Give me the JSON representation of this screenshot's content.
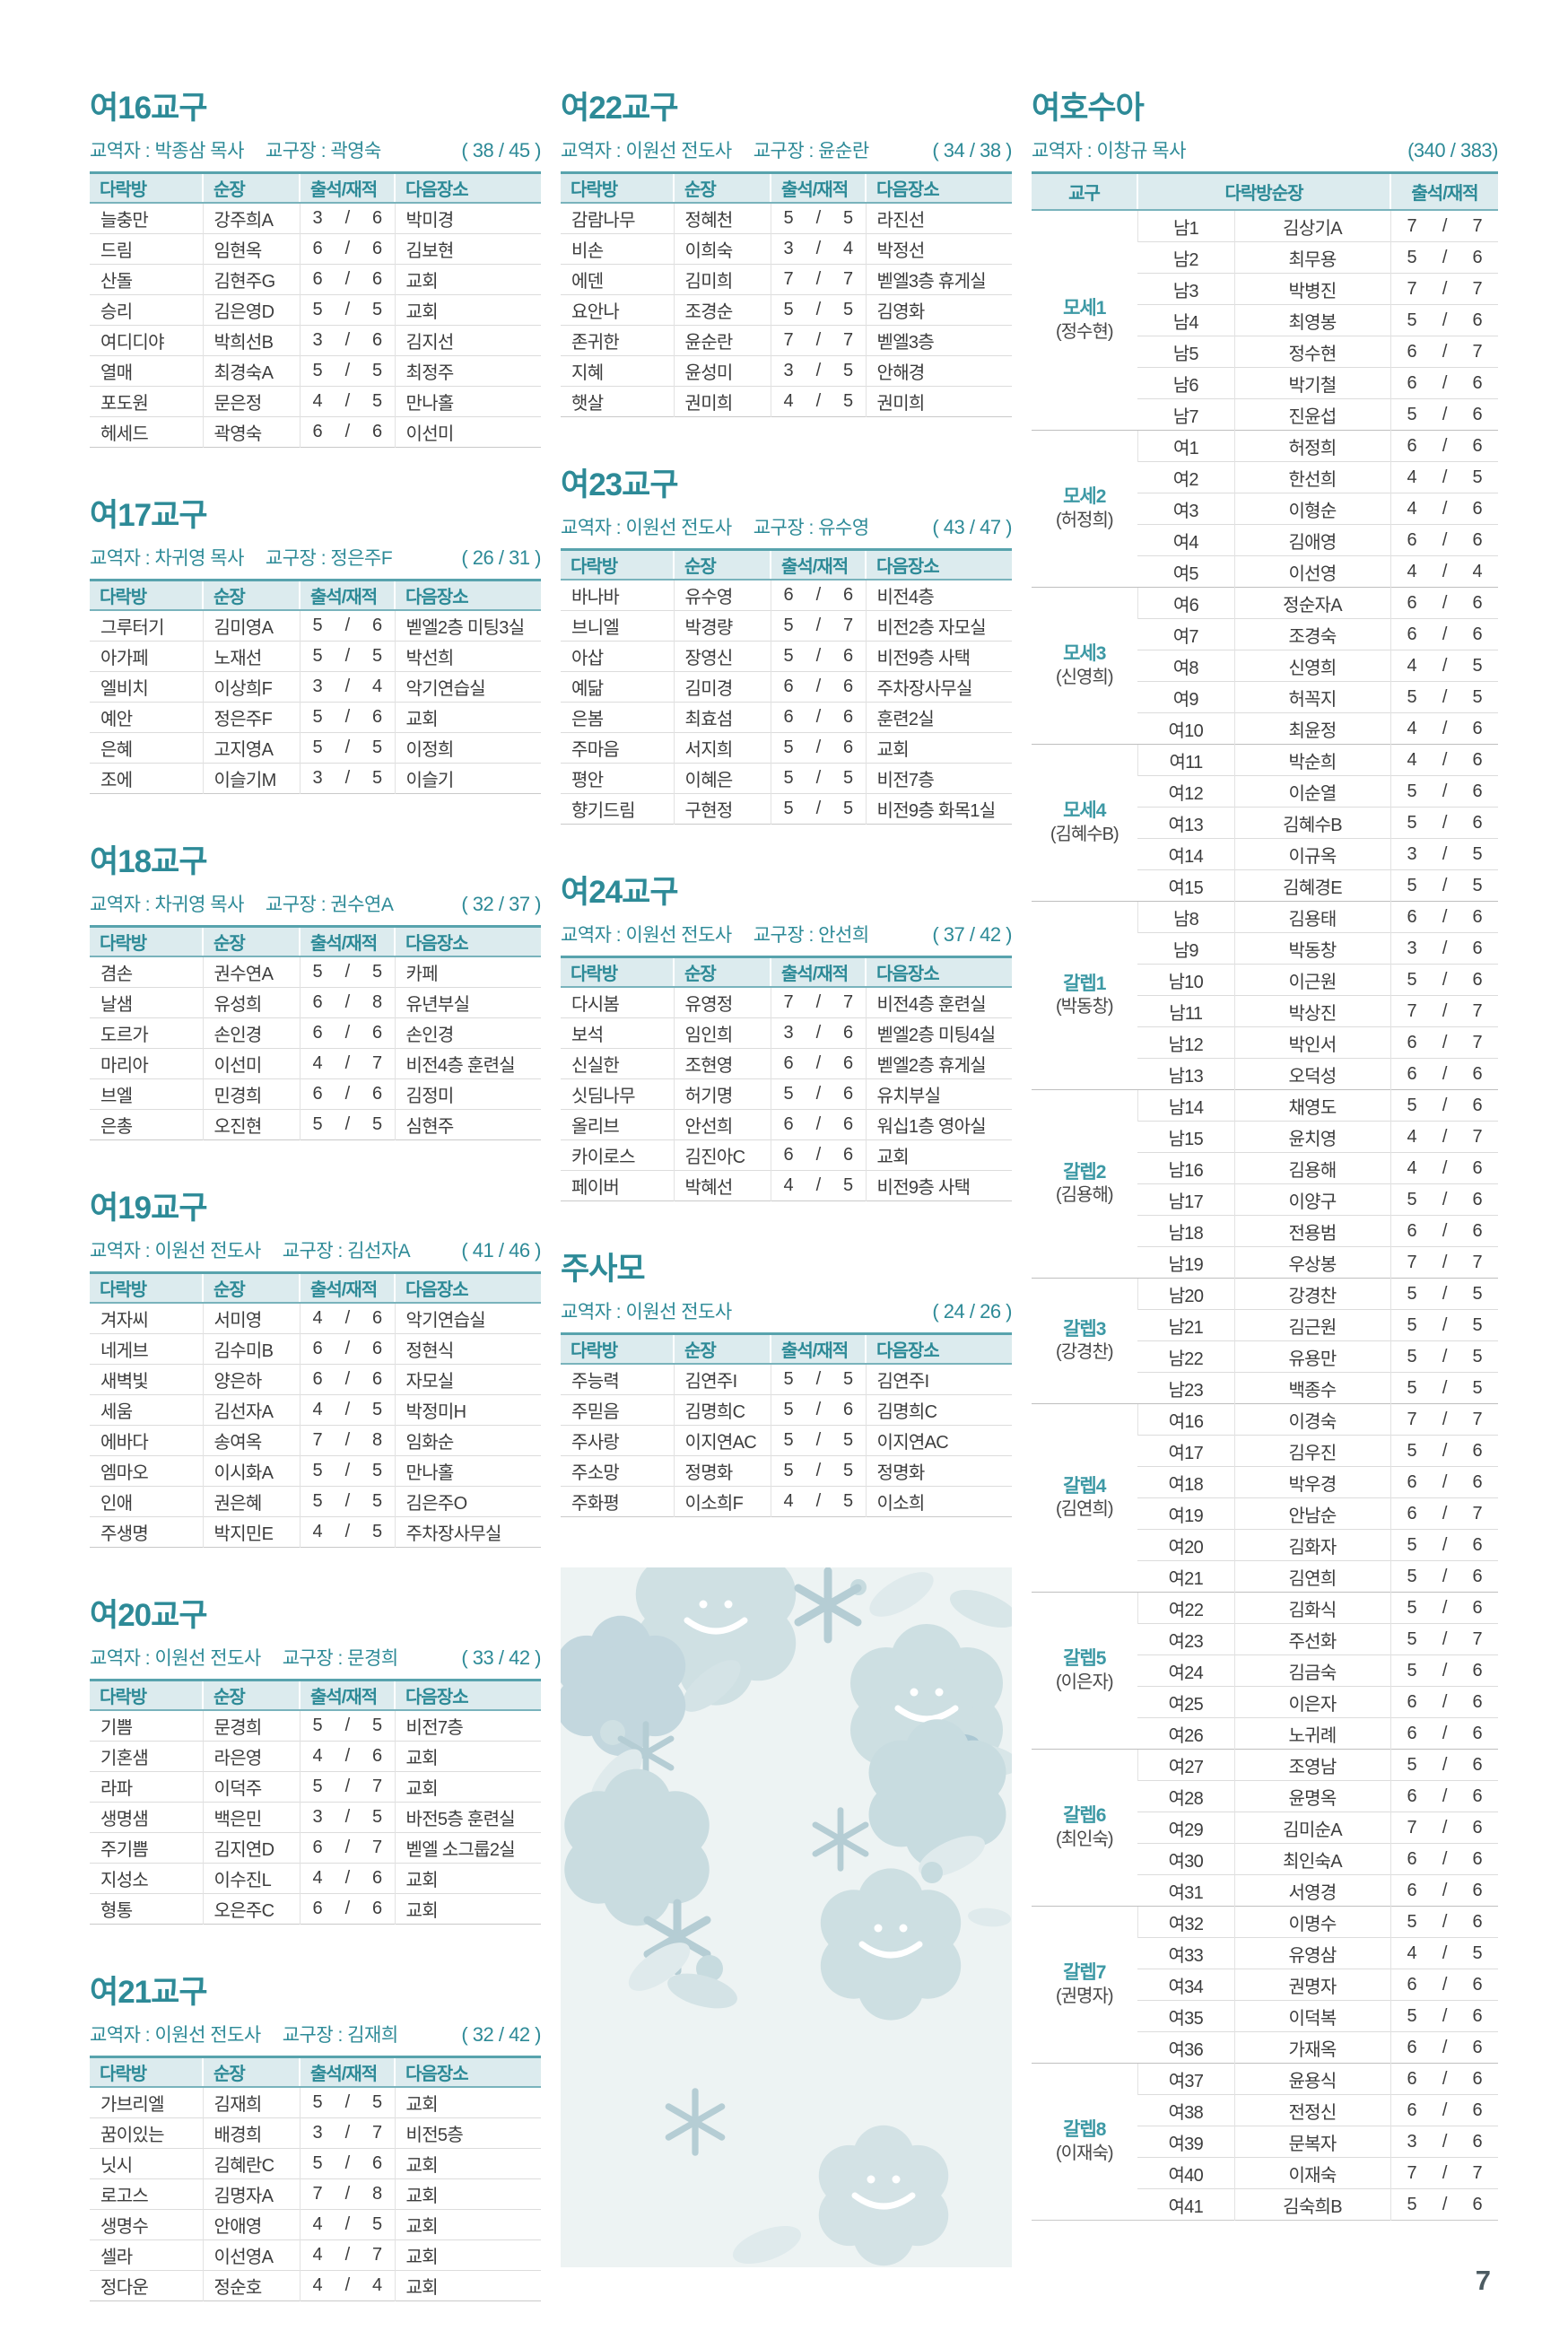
{
  "page": {
    "number": "7"
  },
  "colors": {
    "accent": "#2d8a97",
    "header_bg": "#dcebee",
    "deco_panel": "#edf3f3"
  },
  "labels": {
    "pastor_prefix": "교역자 :",
    "head_prefix": "교구장 :"
  },
  "table_headers": {
    "room": "다락방",
    "leader": "순장",
    "attendance": "출석/재적",
    "next_place": "다음장소"
  },
  "decoration": {
    "icons": [
      "flower-icon",
      "sparkle-icon",
      "leaf-icon"
    ]
  },
  "sections": [
    {
      "title": "여16교구",
      "pastor": "박종삼 목사",
      "head": "곽영숙",
      "count": "( 38 / 45 )",
      "rows": [
        [
          "늘충만",
          "강주희A",
          "3",
          "6",
          "박미경"
        ],
        [
          "드림",
          "임현옥",
          "6",
          "6",
          "김보현"
        ],
        [
          "산돌",
          "김현주G",
          "6",
          "6",
          "교회"
        ],
        [
          "승리",
          "김은영D",
          "5",
          "5",
          "교회"
        ],
        [
          "여디디야",
          "박희선B",
          "3",
          "6",
          "김지선"
        ],
        [
          "열매",
          "최경숙A",
          "5",
          "5",
          "최정주"
        ],
        [
          "포도원",
          "문은정",
          "4",
          "5",
          "만나홀"
        ],
        [
          "헤세드",
          "곽영숙",
          "6",
          "6",
          "이선미"
        ]
      ]
    },
    {
      "title": "여17교구",
      "pastor": "차귀영 목사",
      "head": "정은주F",
      "count": "( 26 / 31 )",
      "rows": [
        [
          "그루터기",
          "김미영A",
          "5",
          "6",
          "벧엘2층 미팅3실"
        ],
        [
          "아가페",
          "노재선",
          "5",
          "5",
          "박선희"
        ],
        [
          "엘비치",
          "이상희F",
          "3",
          "4",
          "악기연습실"
        ],
        [
          "예안",
          "정은주F",
          "5",
          "6",
          "교회"
        ],
        [
          "은혜",
          "고지영A",
          "5",
          "5",
          "이정희"
        ],
        [
          "조에",
          "이슬기M",
          "3",
          "5",
          "이슬기"
        ]
      ]
    },
    {
      "title": "여18교구",
      "pastor": "차귀영 목사",
      "head": "권수연A",
      "count": "( 32 / 37 )",
      "rows": [
        [
          "겸손",
          "권수연A",
          "5",
          "5",
          "카페"
        ],
        [
          "날샘",
          "유성희",
          "6",
          "8",
          "유년부실"
        ],
        [
          "도르가",
          "손인경",
          "6",
          "6",
          "손인경"
        ],
        [
          "마리아",
          "이선미",
          "4",
          "7",
          "비전4층 훈련실"
        ],
        [
          "브엘",
          "민경희",
          "6",
          "6",
          "김정미"
        ],
        [
          "은총",
          "오진현",
          "5",
          "5",
          "심현주"
        ]
      ]
    },
    {
      "title": "여19교구",
      "pastor": "이원선 전도사",
      "head": "김선자A",
      "count": "( 41 / 46 )",
      "rows": [
        [
          "겨자씨",
          "서미영",
          "4",
          "6",
          "악기연습실"
        ],
        [
          "네게브",
          "김수미B",
          "6",
          "6",
          "정현식"
        ],
        [
          "새벽빛",
          "양은하",
          "6",
          "6",
          "자모실"
        ],
        [
          "세움",
          "김선자A",
          "4",
          "5",
          "박정미H"
        ],
        [
          "에바다",
          "송여옥",
          "7",
          "8",
          "임화순"
        ],
        [
          "엠마오",
          "이시화A",
          "5",
          "5",
          "만나홀"
        ],
        [
          "인애",
          "권은혜",
          "5",
          "5",
          "김은주O"
        ],
        [
          "주생명",
          "박지민E",
          "4",
          "5",
          "주차장사무실"
        ]
      ]
    },
    {
      "title": "여20교구",
      "pastor": "이원선 전도사",
      "head": "문경희",
      "count": "( 33 / 42 )",
      "rows": [
        [
          "기쁨",
          "문경희",
          "5",
          "5",
          "비전7층"
        ],
        [
          "기혼샘",
          "라은영",
          "4",
          "6",
          "교회"
        ],
        [
          "라파",
          "이덕주",
          "5",
          "7",
          "교회"
        ],
        [
          "생명샘",
          "백은민",
          "3",
          "5",
          "바전5층 훈련실"
        ],
        [
          "주기쁨",
          "김지연D",
          "6",
          "7",
          "벧엘 소그룹2실"
        ],
        [
          "지성소",
          "이수진L",
          "4",
          "6",
          "교회"
        ],
        [
          "형통",
          "오은주C",
          "6",
          "6",
          "교회"
        ]
      ]
    },
    {
      "title": "여21교구",
      "pastor": "이원선 전도사",
      "head": "김재희",
      "count": "( 32 / 42 )",
      "rows": [
        [
          "가브리엘",
          "김재희",
          "5",
          "5",
          "교회"
        ],
        [
          "꿈이있는",
          "배경희",
          "3",
          "7",
          "비전5층"
        ],
        [
          "닛시",
          "김혜란C",
          "5",
          "6",
          "교회"
        ],
        [
          "로고스",
          "김명자A",
          "7",
          "8",
          "교회"
        ],
        [
          "생명수",
          "안애영",
          "4",
          "5",
          "교회"
        ],
        [
          "셀라",
          "이선영A",
          "4",
          "7",
          "교회"
        ],
        [
          "정다운",
          "정순호",
          "4",
          "4",
          "교회"
        ]
      ]
    },
    {
      "title": "여22교구",
      "pastor": "이원선 전도사",
      "head": "윤순란",
      "count": "( 34 / 38 )",
      "rows": [
        [
          "감람나무",
          "정혜천",
          "5",
          "5",
          "라진선"
        ],
        [
          "비손",
          "이희숙",
          "3",
          "4",
          "박정선"
        ],
        [
          "에덴",
          "김미희",
          "7",
          "7",
          "벧엘3층 휴게실"
        ],
        [
          "요안나",
          "조경순",
          "5",
          "5",
          "김영화"
        ],
        [
          "존귀한",
          "윤순란",
          "7",
          "7",
          "벧엘3층"
        ],
        [
          "지혜",
          "윤성미",
          "3",
          "5",
          "안해경"
        ],
        [
          "햇살",
          "권미희",
          "4",
          "5",
          "권미희"
        ]
      ]
    },
    {
      "title": "여23교구",
      "pastor": "이원선 전도사",
      "head": "유수영",
      "count": "( 43 / 47 )",
      "rows": [
        [
          "바나바",
          "유수영",
          "6",
          "6",
          "비전4층"
        ],
        [
          "브니엘",
          "박경량",
          "5",
          "7",
          "비전2층 자모실"
        ],
        [
          "아삽",
          "장영신",
          "5",
          "6",
          "비전9층 사택"
        ],
        [
          "예닮",
          "김미경",
          "6",
          "6",
          "주차장사무실"
        ],
        [
          "은봄",
          "최효섬",
          "6",
          "6",
          "훈련2실"
        ],
        [
          "주마음",
          "서지희",
          "5",
          "6",
          "교회"
        ],
        [
          "평안",
          "이혜은",
          "5",
          "5",
          "비전7층"
        ],
        [
          "향기드림",
          "구현정",
          "5",
          "5",
          "비전9층 화목1실"
        ]
      ]
    },
    {
      "title": "여24교구",
      "pastor": "이원선 전도사",
      "head": "안선희",
      "count": "( 37 / 42 )",
      "rows": [
        [
          "다시봄",
          "유영정",
          "7",
          "7",
          "비전4층 훈련실"
        ],
        [
          "보석",
          "임인희",
          "3",
          "6",
          "벧엘2층 미팅4실"
        ],
        [
          "신실한",
          "조현영",
          "6",
          "6",
          "벧엘2층 휴게실"
        ],
        [
          "싯딤나무",
          "허기명",
          "5",
          "6",
          "유치부실"
        ],
        [
          "올리브",
          "안선희",
          "6",
          "6",
          "워십1층 영아실"
        ],
        [
          "카이로스",
          "김진아C",
          "6",
          "6",
          "교회"
        ],
        [
          "페이버",
          "박혜선",
          "4",
          "5",
          "비전9층 사택"
        ]
      ]
    },
    {
      "title": "주사모",
      "pastor": "이원선 전도사",
      "head": null,
      "count": "( 24 / 26 )",
      "rows": [
        [
          "주능력",
          "김연주I",
          "5",
          "5",
          "김연주I"
        ],
        [
          "주믿음",
          "김명희C",
          "5",
          "6",
          "김명희C"
        ],
        [
          "주사랑",
          "이지연AC",
          "5",
          "5",
          "이지연AC"
        ],
        [
          "주소망",
          "정명화",
          "5",
          "5",
          "정명화"
        ],
        [
          "주화평",
          "이소희F",
          "4",
          "5",
          "이소희"
        ]
      ]
    }
  ],
  "joshua": {
    "title": "여호수아",
    "pastor": "이창규 목사",
    "count": "(340 / 383)",
    "headers": {
      "district": "교구",
      "leader": "다락방순장",
      "attendance": "출석/재적"
    },
    "groups": [
      {
        "name": "모세1",
        "head": "(정수현)",
        "rows": [
          [
            "남1",
            "김상기A",
            "7",
            "7"
          ],
          [
            "남2",
            "최무용",
            "5",
            "6"
          ],
          [
            "남3",
            "박병진",
            "7",
            "7"
          ],
          [
            "남4",
            "최영봉",
            "5",
            "6"
          ],
          [
            "남5",
            "정수현",
            "6",
            "7"
          ],
          [
            "남6",
            "박기철",
            "6",
            "6"
          ],
          [
            "남7",
            "진윤섭",
            "5",
            "6"
          ]
        ]
      },
      {
        "name": "모세2",
        "head": "(허정희)",
        "rows": [
          [
            "여1",
            "허정희",
            "6",
            "6"
          ],
          [
            "여2",
            "한선희",
            "4",
            "5"
          ],
          [
            "여3",
            "이형순",
            "4",
            "6"
          ],
          [
            "여4",
            "김애영",
            "6",
            "6"
          ],
          [
            "여5",
            "이선영",
            "4",
            "4"
          ]
        ]
      },
      {
        "name": "모세3",
        "head": "(신영희)",
        "rows": [
          [
            "여6",
            "정순자A",
            "6",
            "6"
          ],
          [
            "여7",
            "조경숙",
            "6",
            "6"
          ],
          [
            "여8",
            "신영희",
            "4",
            "5"
          ],
          [
            "여9",
            "허꼭지",
            "5",
            "5"
          ],
          [
            "여10",
            "최윤정",
            "4",
            "6"
          ]
        ]
      },
      {
        "name": "모세4",
        "head": "(김혜수B)",
        "rows": [
          [
            "여11",
            "박순희",
            "4",
            "6"
          ],
          [
            "여12",
            "이순열",
            "5",
            "6"
          ],
          [
            "여13",
            "김혜수B",
            "5",
            "6"
          ],
          [
            "여14",
            "이규옥",
            "3",
            "5"
          ],
          [
            "여15",
            "김혜경E",
            "5",
            "5"
          ]
        ]
      },
      {
        "name": "갈렙1",
        "head": "(박동창)",
        "rows": [
          [
            "남8",
            "김용태",
            "6",
            "6"
          ],
          [
            "남9",
            "박동창",
            "3",
            "6"
          ],
          [
            "남10",
            "이근원",
            "5",
            "6"
          ],
          [
            "남11",
            "박상진",
            "7",
            "7"
          ],
          [
            "남12",
            "박인서",
            "6",
            "7"
          ],
          [
            "남13",
            "오덕성",
            "6",
            "6"
          ]
        ]
      },
      {
        "name": "갈렙2",
        "head": "(김용해)",
        "rows": [
          [
            "남14",
            "채영도",
            "5",
            "6"
          ],
          [
            "남15",
            "윤치영",
            "4",
            "7"
          ],
          [
            "남16",
            "김용해",
            "4",
            "6"
          ],
          [
            "남17",
            "이양구",
            "5",
            "6"
          ],
          [
            "남18",
            "전용범",
            "6",
            "6"
          ],
          [
            "남19",
            "우상봉",
            "7",
            "7"
          ]
        ]
      },
      {
        "name": "갈렙3",
        "head": "(강경찬)",
        "rows": [
          [
            "남20",
            "강경찬",
            "5",
            "5"
          ],
          [
            "남21",
            "김근원",
            "5",
            "5"
          ],
          [
            "남22",
            "유용만",
            "5",
            "5"
          ],
          [
            "남23",
            "백종수",
            "5",
            "5"
          ]
        ]
      },
      {
        "name": "갈렙4",
        "head": "(김연희)",
        "rows": [
          [
            "여16",
            "이경숙",
            "7",
            "7"
          ],
          [
            "여17",
            "김우진",
            "5",
            "6"
          ],
          [
            "여18",
            "박우경",
            "6",
            "6"
          ],
          [
            "여19",
            "안남순",
            "6",
            "7"
          ],
          [
            "여20",
            "김화자",
            "5",
            "6"
          ],
          [
            "여21",
            "김연희",
            "5",
            "6"
          ]
        ]
      },
      {
        "name": "갈렙5",
        "head": "(이은자)",
        "rows": [
          [
            "여22",
            "김화식",
            "5",
            "6"
          ],
          [
            "여23",
            "주선화",
            "5",
            "7"
          ],
          [
            "여24",
            "김금숙",
            "5",
            "6"
          ],
          [
            "여25",
            "이은자",
            "6",
            "6"
          ],
          [
            "여26",
            "노귀례",
            "6",
            "6"
          ]
        ]
      },
      {
        "name": "갈렙6",
        "head": "(최인숙)",
        "rows": [
          [
            "여27",
            "조영남",
            "5",
            "6"
          ],
          [
            "여28",
            "윤명옥",
            "6",
            "6"
          ],
          [
            "여29",
            "김미순A",
            "7",
            "6"
          ],
          [
            "여30",
            "최인숙A",
            "6",
            "6"
          ],
          [
            "여31",
            "서영경",
            "6",
            "6"
          ]
        ]
      },
      {
        "name": "갈렙7",
        "head": "(권명자)",
        "rows": [
          [
            "여32",
            "이명수",
            "5",
            "6"
          ],
          [
            "여33",
            "유영삼",
            "4",
            "5"
          ],
          [
            "여34",
            "권명자",
            "6",
            "6"
          ],
          [
            "여35",
            "이덕복",
            "5",
            "6"
          ],
          [
            "여36",
            "가재옥",
            "6",
            "6"
          ]
        ]
      },
      {
        "name": "갈렙8",
        "head": "(이재숙)",
        "rows": [
          [
            "여37",
            "윤용식",
            "6",
            "6"
          ],
          [
            "여38",
            "전정신",
            "6",
            "6"
          ],
          [
            "여39",
            "문복자",
            "3",
            "6"
          ],
          [
            "여40",
            "이재숙",
            "7",
            "7"
          ],
          [
            "여41",
            "김숙희B",
            "5",
            "6"
          ]
        ]
      }
    ]
  }
}
